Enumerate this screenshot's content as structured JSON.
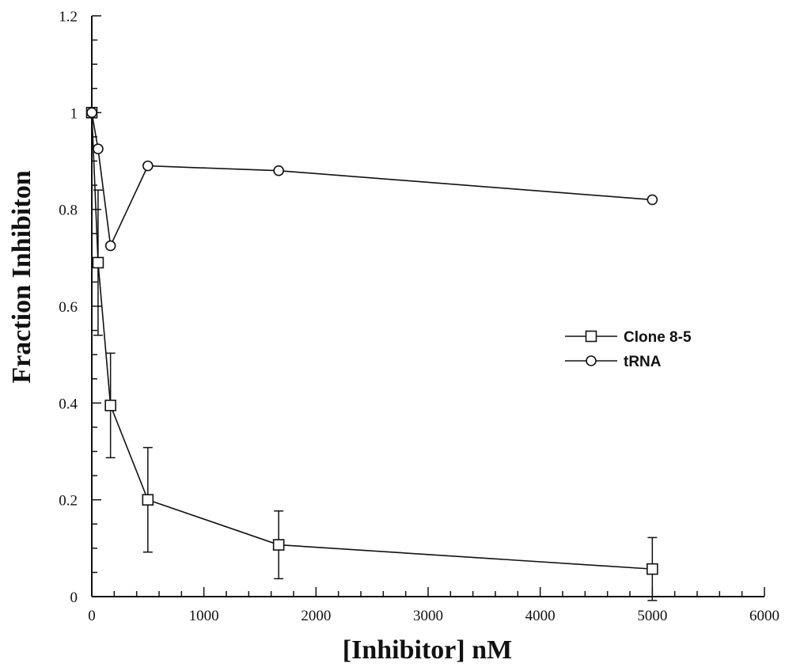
{
  "chart_data": {
    "type": "line",
    "xlabel": "[Inhibitor] nM",
    "ylabel": "Fraction Inhibiton",
    "xlim": [
      0,
      6000
    ],
    "ylim": [
      0,
      1.2
    ],
    "x_ticks": [
      "0",
      "1000",
      "2000",
      "3000",
      "4000",
      "5000",
      "6000"
    ],
    "y_ticks": [
      "0",
      "0.2",
      "0.4",
      "0.6",
      "0.8",
      "1",
      "1.2"
    ],
    "legend_position": "right",
    "series": [
      {
        "name": "Clone 8-5",
        "marker": "square",
        "x": [
          0,
          56,
          167,
          500,
          1667,
          5000
        ],
        "y": [
          1.0,
          0.69,
          0.395,
          0.2,
          0.107,
          0.057
        ],
        "error": [
          0,
          0.15,
          0.108,
          0.108,
          0.07,
          0.065
        ]
      },
      {
        "name": "tRNA",
        "marker": "circle",
        "x": [
          0,
          56,
          167,
          500,
          1667,
          5000
        ],
        "y": [
          1.0,
          0.925,
          0.725,
          0.89,
          0.88,
          0.82
        ],
        "error": [
          0,
          0,
          0,
          0,
          0,
          0
        ]
      }
    ]
  }
}
